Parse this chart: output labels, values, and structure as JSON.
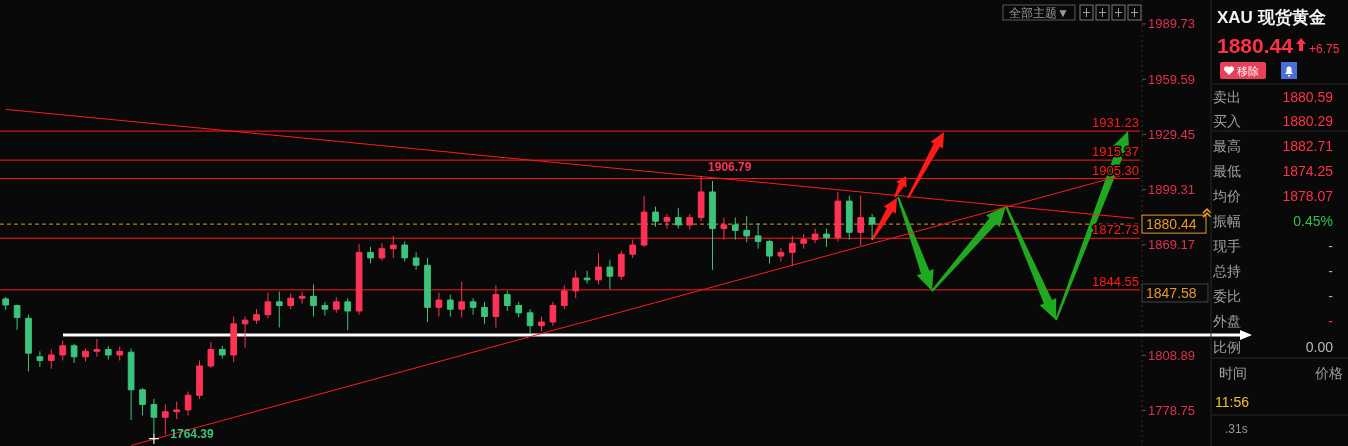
{
  "chart_data": [
    {
      "type": "candlestick",
      "categories": [
        null,
        null,
        null,
        null,
        null,
        null,
        null,
        null,
        null,
        null,
        null,
        null,
        null,
        null,
        null,
        null,
        null,
        null,
        null,
        null,
        null,
        null,
        null,
        null,
        null,
        null,
        null,
        null,
        null,
        null,
        null,
        null,
        null,
        null,
        null,
        null,
        null,
        null,
        null,
        null,
        null,
        null,
        null,
        null,
        null,
        null,
        null,
        null,
        null,
        null,
        null,
        null,
        null,
        null,
        null,
        null,
        null,
        null,
        null,
        null,
        null,
        null,
        null,
        null,
        null,
        null,
        null,
        null,
        null,
        null,
        null,
        null,
        null,
        null,
        null,
        null,
        null,
        null,
        null,
        null,
        null,
        null,
        null,
        null,
        null,
        null,
        null,
        null,
        null,
        null,
        null,
        null,
        null,
        null,
        null,
        null,
        null,
        null,
        null,
        null
      ],
      "ohlc": [
        [
          1839.6,
          1840.7,
          1833.6,
          1836.3
        ],
        [
          1836,
          1836.5,
          1822.7,
          1829.5
        ],
        [
          1829,
          1831,
          1800,
          1810
        ],
        [
          1808,
          1811,
          1802.5,
          1806
        ],
        [
          1806,
          1812,
          1801.5,
          1809
        ],
        [
          1809,
          1816.8,
          1806,
          1814
        ],
        [
          1814,
          1815,
          1804.6,
          1808
        ],
        [
          1808,
          1812.5,
          1805.5,
          1811
        ],
        [
          1811,
          1817.7,
          1808,
          1812
        ],
        [
          1812,
          1814,
          1806.5,
          1809
        ],
        [
          1809,
          1813.5,
          1806,
          1811
        ],
        [
          1810.5,
          1812.5,
          1773.5,
          1790
        ],
        [
          1790,
          1791,
          1776,
          1782
        ],
        [
          1782,
          1785,
          1764.39,
          1775
        ],
        [
          1775,
          1782,
          1765.5,
          1778
        ],
        [
          1778,
          1783.5,
          1774,
          1779
        ],
        [
          1779,
          1789,
          1776,
          1787
        ],
        [
          1787,
          1806,
          1785,
          1803
        ],
        [
          1803,
          1816,
          1802,
          1812
        ],
        [
          1812,
          1814,
          1807,
          1809
        ],
        [
          1809,
          1830,
          1805,
          1826
        ],
        [
          1826,
          1830,
          1813,
          1828
        ],
        [
          1828,
          1834,
          1826,
          1831
        ],
        [
          1831,
          1843,
          1829,
          1838
        ],
        [
          1838,
          1843.6,
          1824,
          1836
        ],
        [
          1836,
          1842.5,
          1834,
          1840
        ],
        [
          1840,
          1843.5,
          1837,
          1841
        ],
        [
          1841,
          1847.5,
          1830,
          1836
        ],
        [
          1836,
          1838,
          1830.5,
          1834
        ],
        [
          1834,
          1840.5,
          1832,
          1838
        ],
        [
          1838,
          1840,
          1822.5,
          1833
        ],
        [
          1833,
          1869.5,
          1831,
          1865
        ],
        [
          1865,
          1868,
          1859,
          1862
        ],
        [
          1862,
          1870,
          1860.5,
          1867
        ],
        [
          1867,
          1874,
          1862,
          1869
        ],
        [
          1869,
          1871,
          1860,
          1862
        ],
        [
          1862,
          1865,
          1855.5,
          1858
        ],
        [
          1858,
          1862,
          1827,
          1835
        ],
        [
          1835,
          1843,
          1830,
          1839
        ],
        [
          1839,
          1842,
          1830,
          1834
        ],
        [
          1834,
          1849,
          1829.5,
          1838
        ],
        [
          1838,
          1840,
          1831,
          1835
        ],
        [
          1835,
          1838,
          1826,
          1830
        ],
        [
          1830,
          1847,
          1824,
          1842
        ],
        [
          1842,
          1844,
          1833,
          1836
        ],
        [
          1836,
          1838,
          1829.5,
          1832
        ],
        [
          1832,
          1834,
          1821,
          1825
        ],
        [
          1825,
          1830,
          1822,
          1827
        ],
        [
          1827,
          1838,
          1825,
          1836
        ],
        [
          1836,
          1847,
          1834,
          1844
        ],
        [
          1844,
          1855,
          1840,
          1851
        ],
        [
          1851,
          1855,
          1848,
          1850
        ],
        [
          1850,
          1864.5,
          1847.5,
          1857
        ],
        [
          1857,
          1861,
          1845,
          1852
        ],
        [
          1852,
          1866,
          1850,
          1864
        ],
        [
          1864,
          1872,
          1862,
          1869
        ],
        [
          1869,
          1895.8,
          1868,
          1887
        ],
        [
          1887,
          1890,
          1879,
          1882
        ],
        [
          1882,
          1886,
          1878,
          1884
        ],
        [
          1884,
          1889.3,
          1878,
          1880
        ],
        [
          1880,
          1886,
          1877.5,
          1884
        ],
        [
          1884,
          1906.79,
          1882,
          1898
        ],
        [
          1898,
          1904,
          1855.5,
          1878
        ],
        [
          1878,
          1884,
          1872,
          1880
        ],
        [
          1880,
          1884,
          1872,
          1877
        ],
        [
          1877,
          1885,
          1870.5,
          1874
        ],
        [
          1874,
          1881,
          1867,
          1871
        ],
        [
          1871,
          1872,
          1859,
          1863
        ],
        [
          1863,
          1867.5,
          1860,
          1865
        ],
        [
          1865,
          1874,
          1857.6,
          1870
        ],
        [
          1870,
          1875,
          1867,
          1872
        ],
        [
          1872,
          1878,
          1870,
          1875
        ],
        [
          1875,
          1878,
          1868,
          1873
        ],
        [
          1873,
          1898,
          1871,
          1893
        ],
        [
          1893,
          1896,
          1872,
          1876
        ],
        [
          1876,
          1896,
          1868.5,
          1884
        ],
        [
          1884,
          1886,
          1871.7,
          1880.44
        ],
        null,
        null,
        null,
        null,
        null,
        null,
        null,
        null,
        null,
        null,
        null,
        null,
        null,
        null,
        null,
        null,
        null,
        null,
        null,
        null,
        null,
        null,
        null
      ],
      "colors": [
        "#3cc47c",
        "#3cc47c",
        "#3cc47c",
        "#3cc47c",
        "#ff3355",
        "#ff3355",
        "#3cc47c",
        "#ff3355",
        "#ff3355",
        "#3cc47c",
        "#ff3355",
        "#3cc47c",
        "#3cc47c",
        "#3cc47c",
        "#ff3355",
        "#ff3355",
        "#ff3355",
        "#ff3355",
        "#ff3355",
        "#3cc47c",
        "#ff3355",
        "#ff3355",
        "#ff3355",
        "#ff3355",
        "#3cc47c",
        "#ff3355",
        "#ff3355",
        "#3cc47c",
        "#3cc47c",
        "#ff3355",
        "#3cc47c",
        "#ff3355",
        "#3cc47c",
        "#ff3355",
        "#ff3355",
        "#3cc47c",
        "#3cc47c",
        "#3cc47c",
        "#ff3355",
        "#3cc47c",
        "#ff3355",
        "#3cc47c",
        "#3cc47c",
        "#ff3355",
        "#3cc47c",
        "#3cc47c",
        "#3cc47c",
        "#ff3355",
        "#ff3355",
        "#ff3355",
        "#ff3355",
        "#3cc47c",
        "#ff3355",
        "#3cc47c",
        "#ff3355",
        "#ff3355",
        "#ff3355",
        "#3cc47c",
        "#ff3355",
        "#3cc47c",
        "#ff3355",
        "#ff3355",
        "#3cc47c",
        "#ff3355",
        "#3cc47c",
        "#3cc47c",
        "#3cc47c",
        "#3cc47c",
        "#ff3355",
        "#ff3355",
        "#ff3355",
        "#ff3355",
        "#3cc47c",
        "#ff3355",
        "#3cc47c",
        "#ff3355",
        "#3cc47c",
        null,
        null,
        null,
        null,
        null,
        null,
        null,
        null,
        null,
        null,
        null,
        null,
        null,
        null,
        null,
        null,
        null,
        null,
        null,
        null,
        null,
        null,
        null
      ],
      "series": [
        {
          "type": "line",
          "color": "#ff1a1a",
          "values": [
            1943.1,
            1942.5,
            1941.9,
            1941.3,
            1940.7,
            1940.1,
            1939.5,
            1938.9,
            1938.3,
            1937.7,
            1937.1,
            1936.5,
            1935.9,
            1935.3,
            1934.7,
            1934.1,
            1933.5,
            1932.9,
            1932.3,
            1931.7,
            1931.1,
            1930.5,
            1929.9,
            1929.3,
            1928.7,
            1928.1,
            1927.5,
            1926.9,
            1926.3,
            1925.7,
            1925.1,
            1924.5,
            1923.9,
            1923.3,
            1922.7,
            1922.1,
            1921.5,
            1920.9,
            1920.3,
            1919.7,
            1919.0,
            1918.4,
            1917.8,
            1917.2,
            1916.6,
            1916.0,
            1915.4,
            1914.8,
            1914.2,
            1913.6,
            1913.0,
            1912.4,
            1911.8,
            1911.2,
            1910.6,
            1910.0,
            1909.4,
            1908.8,
            1908.2,
            1907.6,
            1907.0,
            1906.4,
            1905.8,
            1905.2,
            1904.6,
            1904.0,
            1903.4,
            1902.8,
            1902.2,
            1901.6,
            1901.0,
            1900.4,
            1899.8,
            1899.2,
            1898.6,
            1898.0,
            1897.4,
            1896.8,
            1896.2,
            1895.6,
            1895.0,
            1894.4,
            1893.8,
            1893.2,
            1892.6,
            1892.0,
            1891.4,
            1890.8,
            1890.2,
            1889.6,
            1889.0,
            1888.4,
            1887.8,
            1887.2,
            1886.6,
            1886.0,
            1885.4,
            1884.8,
            1884.2,
            1883.6
          ]
        },
        {
          "type": "line",
          "color": "#ff1a1a",
          "values": [
            null,
            null,
            null,
            null,
            null,
            null,
            null,
            null,
            null,
            null,
            null,
            1759.6,
            1761.3,
            1763.0,
            1764.7,
            1766.4,
            1768.1,
            1769.8,
            1771.5,
            1773.2,
            1774.9,
            1776.6,
            1778.3,
            1780.0,
            1781.7,
            1783.4,
            1785.0,
            1786.7,
            1788.4,
            1790.1,
            1791.8,
            1793.5,
            1795.2,
            1796.9,
            1798.6,
            1800.3,
            1802.0,
            1803.7,
            1805.4,
            1807.1,
            1808.8,
            1810.5,
            1812.2,
            1813.9,
            1815.6,
            1817.3,
            1819.0,
            1820.7,
            1822.4,
            1824.1,
            1825.8,
            1827.4,
            1829.1,
            1830.8,
            1832.5,
            1834.2,
            1835.9,
            1837.6,
            1839.3,
            1841.0,
            1842.7,
            1844.4,
            1846.1,
            1847.8,
            1849.5,
            1851.2,
            1852.9,
            1854.6,
            1856.3,
            1858.0,
            1859.7,
            1861.4,
            1863.1,
            1864.8,
            1866.5,
            1868.2,
            1869.9,
            1871.5,
            1873.2,
            1874.9,
            1876.6,
            1878.3,
            1880.0,
            1881.7,
            1883.4,
            1885.1,
            1886.8,
            1888.5,
            1890.2,
            1891.9,
            1893.6,
            1895.3,
            1897.0,
            1898.7,
            1900.4,
            1902.1,
            1903.8,
            1905.5,
            1907.2,
            null
          ]
        }
      ],
      "ylim": [
        1759.3,
        2002.8
      ],
      "yticks": [
        1989.73,
        1959.59,
        1929.45,
        1899.31,
        1869.17,
        {
          "value": 1839.03,
          "label": null
        },
        1808.89,
        1778.75
      ],
      "tick_labels": "y",
      "ref_lines": [
        {
          "axis": "y",
          "value": 1931.23,
          "label": "1931.23",
          "color": "#ff1a1a"
        },
        {
          "axis": "y",
          "value": 1915.37,
          "label": "1915.37",
          "color": "#ff1a1a"
        },
        {
          "axis": "y",
          "value": 1905.3,
          "label": "1905.30",
          "color": "#ff1a1a"
        },
        {
          "axis": "y",
          "value": 1872.73,
          "label": "1872.73",
          "color": "#ff1a1a"
        },
        {
          "axis": "y",
          "value": 1844.55,
          "label": "1844.55",
          "color": "#ff1a1a"
        },
        {
          "axis": "y",
          "value": 1880.44,
          "label": "1880.44",
          "color": "#e8982c",
          "line_style": "dashed"
        }
      ],
      "annotations": [
        {
          "text": "1906.79",
          "y": 1906.79
        },
        "1764.39",
        "1847.58",
        "全部主题▼"
      ]
    },
    {
      "type": "other",
      "title": "XAU 现货黄金",
      "annotations": [
        "1880.44",
        "+6.75",
        "移除",
        "卖出",
        "1880.59",
        "买入",
        "1880.29",
        "最高",
        "1882.71",
        "最低",
        "1874.25",
        "均价",
        "1878.07",
        "振幅",
        "0.45%",
        "现手",
        "-",
        "总持",
        "-",
        "委比",
        "-",
        "外盘",
        "-",
        "比例",
        "0.00",
        "时间",
        "价格",
        "11:56",
        ".31s"
      ]
    }
  ]
}
